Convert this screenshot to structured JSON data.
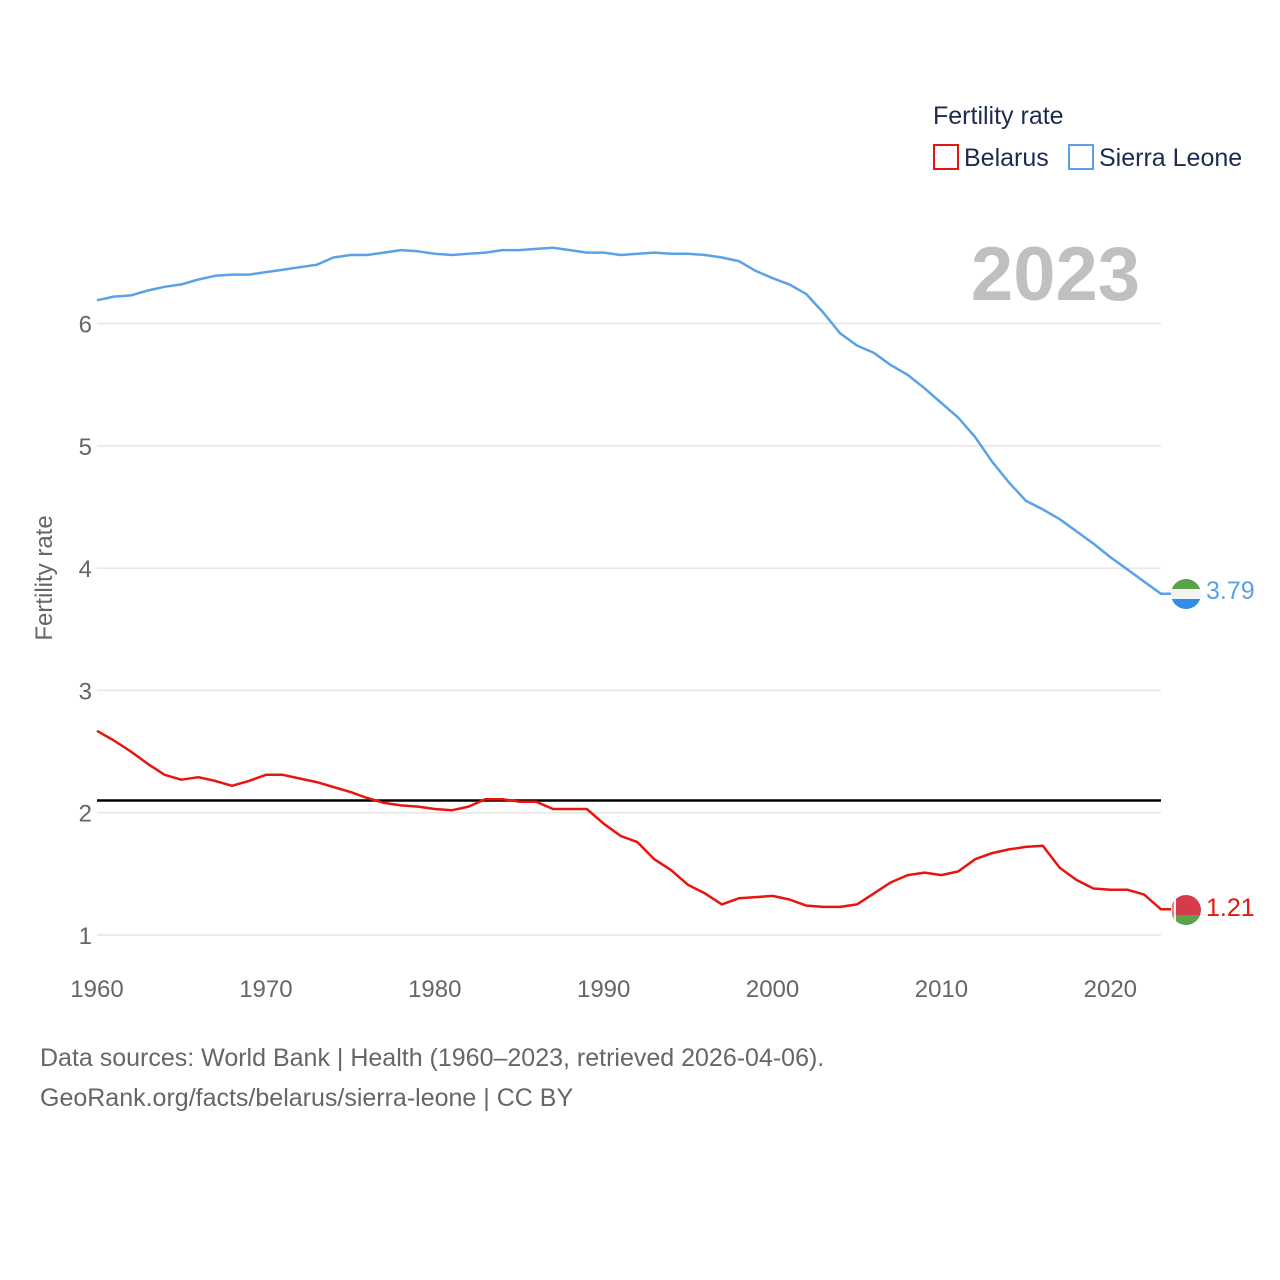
{
  "chart_data": {
    "type": "line",
    "title": "Fertility rate",
    "current_year_label": "2023",
    "ylabel": "Fertility rate",
    "xlabel": "",
    "xlim": [
      1960,
      2023
    ],
    "ylim": [
      0.8,
      7.0
    ],
    "x_ticks": [
      "1960",
      "1970",
      "1980",
      "1990",
      "2000",
      "2010",
      "2020"
    ],
    "y_ticks": [
      "1",
      "2",
      "3",
      "4",
      "5",
      "6"
    ],
    "reference_line": 2.1,
    "years": [
      1960,
      1961,
      1962,
      1963,
      1964,
      1965,
      1966,
      1967,
      1968,
      1969,
      1970,
      1971,
      1972,
      1973,
      1974,
      1975,
      1976,
      1977,
      1978,
      1979,
      1980,
      1981,
      1982,
      1983,
      1984,
      1985,
      1986,
      1987,
      1988,
      1989,
      1990,
      1991,
      1992,
      1993,
      1994,
      1995,
      1996,
      1997,
      1998,
      1999,
      2000,
      2001,
      2002,
      2003,
      2004,
      2005,
      2006,
      2007,
      2008,
      2009,
      2010,
      2011,
      2012,
      2013,
      2014,
      2015,
      2016,
      2017,
      2018,
      2019,
      2020,
      2021,
      2022,
      2023
    ],
    "series": [
      {
        "name": "Belarus",
        "color": "#e8150e",
        "end_label": "1.21",
        "values": [
          2.67,
          2.59,
          2.5,
          2.4,
          2.31,
          2.27,
          2.29,
          2.26,
          2.22,
          2.26,
          2.31,
          2.31,
          2.28,
          2.25,
          2.21,
          2.17,
          2.12,
          2.08,
          2.06,
          2.05,
          2.03,
          2.02,
          2.05,
          2.11,
          2.11,
          2.09,
          2.09,
          2.03,
          2.03,
          2.03,
          1.91,
          1.81,
          1.76,
          1.62,
          1.53,
          1.41,
          1.34,
          1.25,
          1.3,
          1.31,
          1.32,
          1.29,
          1.24,
          1.23,
          1.23,
          1.25,
          1.34,
          1.43,
          1.49,
          1.51,
          1.49,
          1.52,
          1.62,
          1.67,
          1.7,
          1.72,
          1.73,
          1.55,
          1.45,
          1.38,
          1.37,
          1.37,
          1.33,
          1.21
        ]
      },
      {
        "name": "Sierra Leone",
        "color": "#5aa2e5",
        "end_label": "3.79",
        "values": [
          6.19,
          6.22,
          6.23,
          6.27,
          6.3,
          6.32,
          6.36,
          6.39,
          6.4,
          6.4,
          6.42,
          6.44,
          6.46,
          6.48,
          6.54,
          6.56,
          6.56,
          6.58,
          6.6,
          6.59,
          6.57,
          6.56,
          6.57,
          6.58,
          6.6,
          6.6,
          6.61,
          6.62,
          6.6,
          6.58,
          6.58,
          6.56,
          6.57,
          6.58,
          6.57,
          6.57,
          6.56,
          6.54,
          6.51,
          6.43,
          6.37,
          6.32,
          6.24,
          6.09,
          5.92,
          5.82,
          5.76,
          5.66,
          5.58,
          5.47,
          5.35,
          5.23,
          5.07,
          4.87,
          4.7,
          4.55,
          4.48,
          4.4,
          4.3,
          4.2,
          4.09,
          3.99,
          3.89,
          3.79
        ]
      }
    ]
  },
  "legend": {
    "title": "Fertility rate",
    "items": [
      "Belarus",
      "Sierra Leone"
    ]
  },
  "footer": {
    "sources": "Data sources: World Bank | Health (1960–2023, retrieved 2026-04-06).",
    "attribution": "GeoRank.org/facts/belarus/sierra-leone | CC BY"
  }
}
